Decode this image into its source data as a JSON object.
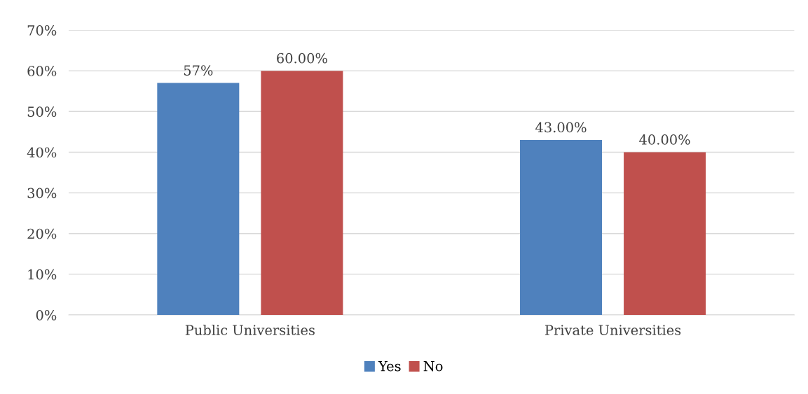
{
  "chart_data": {
    "type": "bar",
    "categories": [
      "Public Universities",
      "Private Universities"
    ],
    "series": [
      {
        "name": "Yes",
        "color": "#4f81bd",
        "values": [
          57,
          43
        ],
        "value_labels": [
          "57%",
          "43.00%"
        ]
      },
      {
        "name": "No",
        "color": "#c0504d",
        "values": [
          60,
          40
        ],
        "value_labels": [
          "60.00%",
          "40.00%"
        ]
      }
    ],
    "ylim": [
      0,
      70
    ],
    "yticks": [
      {
        "value": 0,
        "label": "0%"
      },
      {
        "value": 10,
        "label": "10%"
      },
      {
        "value": 20,
        "label": "20%"
      },
      {
        "value": 30,
        "label": "30%"
      },
      {
        "value": 40,
        "label": "40%"
      },
      {
        "value": 50,
        "label": "50%"
      },
      {
        "value": 60,
        "label": "60%"
      },
      {
        "value": 70,
        "label": "70%"
      }
    ],
    "grid": "y",
    "legend": "bottom"
  }
}
